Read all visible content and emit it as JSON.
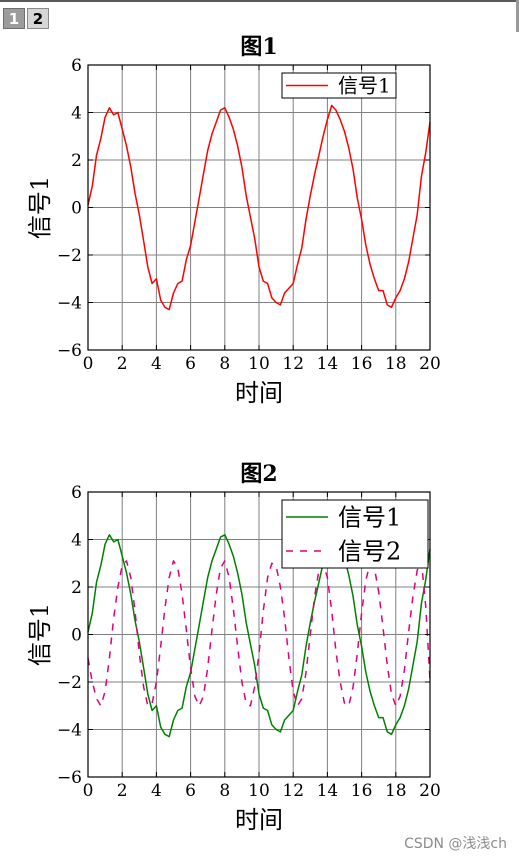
{
  "tabs": [
    {
      "label": "1"
    },
    {
      "label": "2"
    }
  ],
  "watermark": "CSDN @浅浅ch",
  "chart_data": [
    {
      "type": "line",
      "title": "图1",
      "xlabel": "时间",
      "ylabel": "信号1",
      "xlim": [
        0,
        20
      ],
      "ylim": [
        -6,
        6
      ],
      "xticks": [
        0,
        2,
        4,
        6,
        8,
        10,
        12,
        14,
        16,
        18,
        20
      ],
      "yticks": [
        -6,
        -4,
        -2,
        0,
        2,
        4,
        6
      ],
      "grid": true,
      "legend_position": "top-right",
      "x": [
        0,
        0.25,
        0.5,
        0.75,
        1,
        1.25,
        1.5,
        1.75,
        2,
        2.25,
        2.5,
        2.75,
        3,
        3.25,
        3.5,
        3.75,
        4,
        4.25,
        4.5,
        4.75,
        5,
        5.25,
        5.5,
        5.75,
        6,
        6.25,
        6.5,
        6.75,
        7,
        7.25,
        7.5,
        7.75,
        8,
        8.25,
        8.5,
        8.75,
        9,
        9.25,
        9.5,
        9.75,
        10,
        10.25,
        10.5,
        10.75,
        11,
        11.25,
        11.5,
        11.75,
        12,
        12.25,
        12.5,
        12.75,
        13,
        13.25,
        13.5,
        13.75,
        14,
        14.25,
        14.5,
        14.75,
        15,
        15.25,
        15.5,
        15.75,
        16,
        16.25,
        16.5,
        16.75,
        17,
        17.25,
        17.5,
        17.75,
        18,
        18.25,
        18.5,
        18.75,
        19,
        19.25,
        19.5,
        19.75,
        20
      ],
      "series": [
        {
          "name": "信号1",
          "color": "#ff0000",
          "dash": "solid",
          "values": [
            0.1,
            0.9,
            2.2,
            2.9,
            3.8,
            4.2,
            3.9,
            4.0,
            3.3,
            2.6,
            1.7,
            0.6,
            -0.3,
            -1.4,
            -2.5,
            -3.2,
            -3.0,
            -3.9,
            -4.2,
            -4.3,
            -3.6,
            -3.2,
            -3.1,
            -2.2,
            -1.6,
            -0.6,
            0.4,
            1.4,
            2.4,
            3.1,
            3.6,
            4.1,
            4.2,
            3.8,
            3.3,
            2.6,
            1.7,
            0.5,
            -0.4,
            -1.3,
            -2.5,
            -3.1,
            -3.2,
            -3.8,
            -4.0,
            -4.1,
            -3.6,
            -3.4,
            -3.2,
            -2.4,
            -1.7,
            -0.5,
            0.5,
            1.4,
            2.2,
            3.0,
            3.7,
            4.3,
            4.1,
            3.7,
            3.2,
            2.5,
            1.6,
            0.4,
            -0.5,
            -1.6,
            -2.4,
            -3.0,
            -3.5,
            -3.5,
            -4.1,
            -4.2,
            -3.8,
            -3.5,
            -3.0,
            -2.3,
            -1.3,
            -0.3,
            1.3,
            2.3,
            3.6
          ]
        }
      ]
    },
    {
      "type": "line",
      "title": "图2",
      "xlabel": "时间",
      "ylabel": "信号1",
      "xlim": [
        0,
        20
      ],
      "ylim": [
        -6,
        6
      ],
      "xticks": [
        0,
        2,
        4,
        6,
        8,
        10,
        12,
        14,
        16,
        18,
        20
      ],
      "yticks": [
        -6,
        -4,
        -2,
        0,
        2,
        4,
        6
      ],
      "grid": true,
      "legend_position": "top-right",
      "x": [
        0,
        0.25,
        0.5,
        0.75,
        1,
        1.25,
        1.5,
        1.75,
        2,
        2.25,
        2.5,
        2.75,
        3,
        3.25,
        3.5,
        3.75,
        4,
        4.25,
        4.5,
        4.75,
        5,
        5.25,
        5.5,
        5.75,
        6,
        6.25,
        6.5,
        6.75,
        7,
        7.25,
        7.5,
        7.75,
        8,
        8.25,
        8.5,
        8.75,
        9,
        9.25,
        9.5,
        9.75,
        10,
        10.25,
        10.5,
        10.75,
        11,
        11.25,
        11.5,
        11.75,
        12,
        12.25,
        12.5,
        12.75,
        13,
        13.25,
        13.5,
        13.75,
        14,
        14.25,
        14.5,
        14.75,
        15,
        15.25,
        15.5,
        15.75,
        16,
        16.25,
        16.5,
        16.75,
        17,
        17.25,
        17.5,
        17.75,
        18,
        18.25,
        18.5,
        18.75,
        19,
        19.25,
        19.5,
        19.75,
        20
      ],
      "series": [
        {
          "name": "信号1",
          "color": "#008000",
          "dash": "solid",
          "values": [
            0.1,
            0.9,
            2.2,
            2.9,
            3.8,
            4.2,
            3.9,
            4.0,
            3.3,
            2.6,
            1.7,
            0.6,
            -0.3,
            -1.4,
            -2.5,
            -3.2,
            -3.0,
            -3.9,
            -4.2,
            -4.3,
            -3.6,
            -3.2,
            -3.1,
            -2.2,
            -1.6,
            -0.6,
            0.4,
            1.4,
            2.4,
            3.1,
            3.6,
            4.1,
            4.2,
            3.8,
            3.3,
            2.6,
            1.7,
            0.5,
            -0.4,
            -1.3,
            -2.5,
            -3.1,
            -3.2,
            -3.8,
            -4.0,
            -4.1,
            -3.6,
            -3.4,
            -3.2,
            -2.4,
            -1.7,
            -0.5,
            0.5,
            1.4,
            2.2,
            3.0,
            3.7,
            4.3,
            4.1,
            3.7,
            3.2,
            2.5,
            1.6,
            0.4,
            -0.5,
            -1.6,
            -2.4,
            -3.0,
            -3.5,
            -3.5,
            -4.1,
            -4.2,
            -3.8,
            -3.5,
            -3.0,
            -2.3,
            -1.3,
            -0.3,
            1.3,
            2.3,
            3.6
          ]
        },
        {
          "name": "信号2",
          "color": "#e0007f",
          "dash": "dashed",
          "values": [
            -1.0,
            -2.0,
            -2.7,
            -3.0,
            -2.4,
            -1.0,
            0.7,
            2.0,
            2.9,
            3.1,
            2.4,
            1.0,
            -0.8,
            -2.2,
            -3.0,
            -2.9,
            -2.0,
            -0.5,
            1.1,
            2.4,
            3.1,
            2.8,
            1.7,
            0.2,
            -1.4,
            -2.6,
            -3.0,
            -2.6,
            -1.4,
            0.2,
            1.7,
            2.8,
            3.1,
            2.4,
            1.1,
            -0.5,
            -2.0,
            -2.9,
            -3.0,
            -2.2,
            -0.8,
            1.0,
            2.4,
            3.0,
            2.9,
            2.0,
            0.7,
            -1.0,
            -2.4,
            -3.0,
            -2.7,
            -1.6,
            0.0,
            1.6,
            2.7,
            3.0,
            2.4,
            1.0,
            -0.7,
            -2.0,
            -2.9,
            -3.0,
            -2.2,
            -0.8,
            0.9,
            2.3,
            3.0,
            2.8,
            1.8,
            0.3,
            -1.3,
            -2.5,
            -3.0,
            -2.6,
            -1.5,
            0.1,
            1.6,
            2.7,
            3.1,
            1.2,
            -1.9
          ]
        }
      ]
    }
  ]
}
